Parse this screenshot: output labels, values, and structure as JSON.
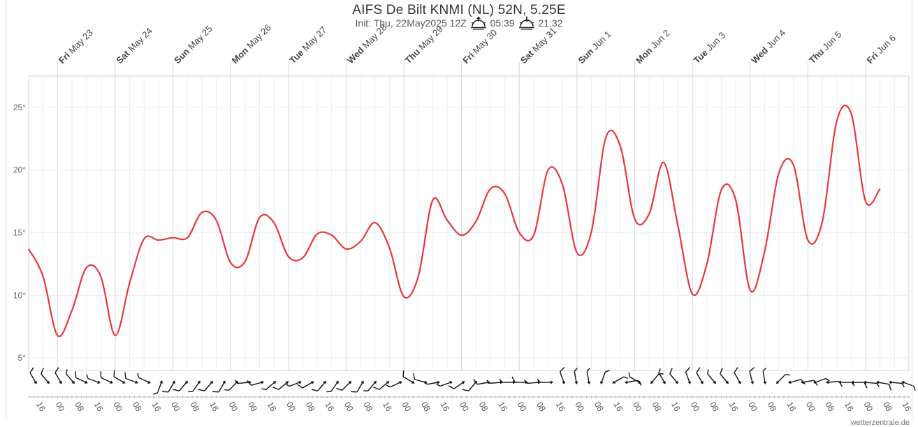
{
  "title": "AIFS De Bilt KNMI (NL) 52N, 5.25E",
  "init_text": "Init: Thu, 22May2025 12Z",
  "sunrise": "05:39",
  "sunset": "21:32",
  "credit": "wetterzentrale.de",
  "colors": {
    "temperature_line": "#e8373a",
    "grid": "#e9edf3",
    "day_line": "#cfd8e6",
    "wind_barb": "#111111"
  },
  "icons": {
    "sunrise": "sunrise-icon",
    "sunset": "sunset-icon"
  },
  "chart_data": {
    "type": "line",
    "title": "AIFS De Bilt KNMI (NL) 52N, 5.25E",
    "xlabel": "",
    "ylabel": "",
    "x_start": "2025-05-22 12Z",
    "x_step_hours": 6,
    "xlim_hours": [
      0,
      366
    ],
    "ylim": [
      4,
      27.5
    ],
    "y_ticks": [
      "5°",
      "10°",
      "15°",
      "20°",
      "25°"
    ],
    "y_tick_values": [
      5,
      10,
      15,
      20,
      25
    ],
    "day_labels": [
      {
        "day": "Fri",
        "date": "May 23"
      },
      {
        "day": "Sat",
        "date": "May 24"
      },
      {
        "day": "Sun",
        "date": "May 25"
      },
      {
        "day": "Mon",
        "date": "May 26"
      },
      {
        "day": "Tue",
        "date": "May 27"
      },
      {
        "day": "Wed",
        "date": "May 28"
      },
      {
        "day": "Thu",
        "date": "May 29"
      },
      {
        "day": "Fri",
        "date": "May 30"
      },
      {
        "day": "Sat",
        "date": "May 31"
      },
      {
        "day": "Sun",
        "date": "Jun 1"
      },
      {
        "day": "Mon",
        "date": "Jun 2"
      },
      {
        "day": "Tue",
        "date": "Jun 3"
      },
      {
        "day": "Wed",
        "date": "Jun 4"
      },
      {
        "day": "Thu",
        "date": "Jun 5"
      },
      {
        "day": "Fri",
        "date": "Jun 6"
      }
    ],
    "hour_labels": [
      "16",
      "00",
      "08"
    ],
    "grid": true,
    "series": [
      {
        "values": [
          13.7,
          11.5,
          6.8,
          8.8,
          12.2,
          11.5,
          6.8,
          11.0,
          14.5,
          14.4,
          14.6,
          14.6,
          16.6,
          16.0,
          12.6,
          12.7,
          16.2,
          15.8,
          13.1,
          13.0,
          14.9,
          14.8,
          13.7,
          14.3,
          15.8,
          13.8,
          9.9,
          11.5,
          17.6,
          16.0,
          14.8,
          15.9,
          18.5,
          18.1,
          15.0,
          14.8,
          20.0,
          18.8,
          13.4,
          15.1,
          22.6,
          21.9,
          16.1,
          16.5,
          20.6,
          15.5,
          10.1,
          12.5,
          18.4,
          17.6,
          10.4,
          13.5,
          19.8,
          20.4,
          14.4,
          15.9,
          23.9,
          24.5,
          17.5,
          18.5
        ]
      }
    ],
    "wind_barbs": [
      {
        "dir": 330,
        "kt": 10
      },
      {
        "dir": 320,
        "kt": 10
      },
      {
        "dir": 330,
        "kt": 10
      },
      {
        "dir": 320,
        "kt": 5
      },
      {
        "dir": 295,
        "kt": 10
      },
      {
        "dir": 290,
        "kt": 5
      },
      {
        "dir": 295,
        "kt": 10
      },
      {
        "dir": 300,
        "kt": 10
      },
      {
        "dir": 290,
        "kt": 10
      },
      {
        "dir": 295,
        "kt": 5
      },
      {
        "dir": 200,
        "kt": 5
      },
      {
        "dir": 210,
        "kt": 10
      },
      {
        "dir": 220,
        "kt": 10
      },
      {
        "dir": 215,
        "kt": 5
      },
      {
        "dir": 220,
        "kt": 10
      },
      {
        "dir": 210,
        "kt": 10
      },
      {
        "dir": 225,
        "kt": 5
      },
      {
        "dir": 265,
        "kt": 5
      },
      {
        "dir": 255,
        "kt": 10
      },
      {
        "dir": 230,
        "kt": 5
      },
      {
        "dir": 230,
        "kt": 10
      },
      {
        "dir": 250,
        "kt": 5
      },
      {
        "dir": 240,
        "kt": 10
      },
      {
        "dir": 220,
        "kt": 10
      },
      {
        "dir": 215,
        "kt": 5
      },
      {
        "dir": 225,
        "kt": 10
      },
      {
        "dir": 210,
        "kt": 10
      },
      {
        "dir": 220,
        "kt": 5
      },
      {
        "dir": 230,
        "kt": 10
      },
      {
        "dir": 245,
        "kt": 5
      },
      {
        "dir": 300,
        "kt": 10
      },
      {
        "dir": 285,
        "kt": 10
      },
      {
        "dir": 260,
        "kt": 5
      },
      {
        "dir": 250,
        "kt": 5
      },
      {
        "dir": 235,
        "kt": 10
      },
      {
        "dir": 220,
        "kt": 10
      },
      {
        "dir": 260,
        "kt": 10
      },
      {
        "dir": 265,
        "kt": 5
      },
      {
        "dir": 270,
        "kt": 5
      },
      {
        "dir": 270,
        "kt": 10
      },
      {
        "dir": 265,
        "kt": 5
      },
      {
        "dir": 270,
        "kt": 5
      },
      {
        "dir": 340,
        "kt": 10
      },
      {
        "dir": 350,
        "kt": 5
      },
      {
        "dir": 350,
        "kt": 5
      },
      {
        "dir": 20,
        "kt": 5
      },
      {
        "dir": 60,
        "kt": 5
      },
      {
        "dir": 80,
        "kt": 10
      },
      {
        "dir": 300,
        "kt": 5
      },
      {
        "dir": 40,
        "kt": 5
      },
      {
        "dir": 330,
        "kt": 5
      },
      {
        "dir": 320,
        "kt": 10
      },
      {
        "dir": 340,
        "kt": 10
      },
      {
        "dir": 330,
        "kt": 10
      },
      {
        "dir": 320,
        "kt": 5
      },
      {
        "dir": 320,
        "kt": 10
      },
      {
        "dir": 330,
        "kt": 10
      },
      {
        "dir": 345,
        "kt": 10
      },
      {
        "dir": 350,
        "kt": 5
      },
      {
        "dir": 45,
        "kt": 5
      },
      {
        "dir": 75,
        "kt": 10
      },
      {
        "dir": 80,
        "kt": 10
      },
      {
        "dir": 70,
        "kt": 5
      },
      {
        "dir": 85,
        "kt": 10
      },
      {
        "dir": 90,
        "kt": 5
      },
      {
        "dir": 90,
        "kt": 10
      },
      {
        "dir": 95,
        "kt": 5
      },
      {
        "dir": 100,
        "kt": 10
      },
      {
        "dir": 95,
        "kt": 5
      },
      {
        "dir": 110,
        "kt": 5
      }
    ]
  }
}
